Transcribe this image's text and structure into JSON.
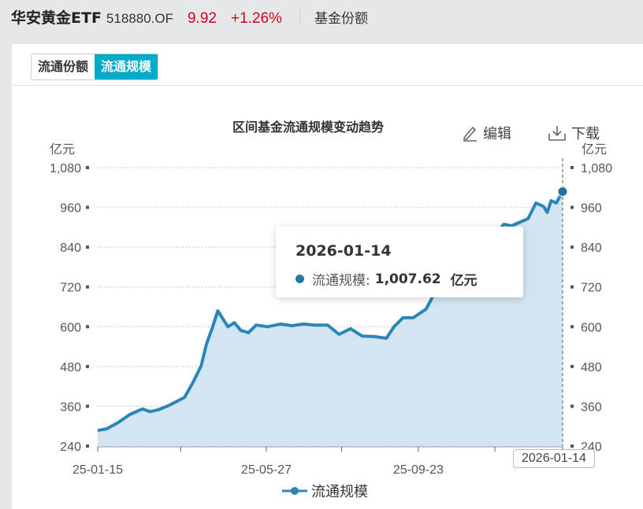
{
  "header": {
    "name": "华安黄金ETF",
    "code": "518880.OF",
    "price": "9.92",
    "change": "+1.26%",
    "link": "基金份额"
  },
  "tabs": [
    {
      "label": "流通份额",
      "active": false
    },
    {
      "label": "流通规模",
      "active": true
    }
  ],
  "toolbar": {
    "edit": "编辑",
    "download": "下载"
  },
  "tooltip": {
    "date": "2026-01-14",
    "series": "流通规模:",
    "value": "1,007.62",
    "unit": "亿元"
  },
  "colors": {
    "line": "#2a86b8",
    "area": "#d3e5f0",
    "accent": "#00aac8",
    "up": "#d0021b"
  },
  "chart_data": {
    "type": "area",
    "title": "区间基金流通规模变动趋势",
    "ylabel_left": "亿元",
    "ylabel_right": "亿元",
    "ylim": [
      240,
      1080
    ],
    "yticks": [
      "240",
      "360",
      "480",
      "600",
      "720",
      "840",
      "960",
      "1,080"
    ],
    "ytick_values": [
      240,
      360,
      480,
      600,
      720,
      840,
      960,
      1080
    ],
    "xtick_labels": [
      "25-01-15",
      "25-05-27",
      "25-09-23",
      "2026-01-14"
    ],
    "xtick_dates": [
      "2025-01-15",
      "2025-03-21",
      "2025-05-27",
      "2025-07-25",
      "2025-09-23",
      "2025-11-22",
      "2026-01-14"
    ],
    "xtick_printed": [
      "25-01-15",
      "",
      "25-05-27",
      "",
      "25-09-23",
      "",
      ""
    ],
    "grid": true,
    "legend_position": "bottom",
    "series": [
      {
        "name": "流通规模",
        "x": [
          "2025-01-15",
          "2025-01-22",
          "2025-01-31",
          "2025-02-09",
          "2025-02-19",
          "2025-02-25",
          "2025-03-03",
          "2025-03-12",
          "2025-03-18",
          "2025-03-24",
          "2025-03-31",
          "2025-04-06",
          "2025-04-10",
          "2025-04-15",
          "2025-04-19",
          "2025-04-23",
          "2025-04-27",
          "2025-05-02",
          "2025-05-07",
          "2025-05-13",
          "2025-05-19",
          "2025-05-28",
          "2025-06-07",
          "2025-06-16",
          "2025-06-25",
          "2025-07-04",
          "2025-07-14",
          "2025-07-23",
          "2025-08-01",
          "2025-08-10",
          "2025-08-20",
          "2025-08-29",
          "2025-09-04",
          "2025-09-11",
          "2025-09-19",
          "2025-09-29",
          "2025-10-05",
          "2025-10-11",
          "2025-10-17",
          "2025-10-23",
          "2025-10-29",
          "2025-11-05",
          "2025-11-11",
          "2025-11-17",
          "2025-11-23",
          "2025-11-29",
          "2025-12-05",
          "2025-12-12",
          "2025-12-18",
          "2025-12-24",
          "2025-12-30",
          "2026-01-02",
          "2026-01-05",
          "2026-01-09",
          "2026-01-14"
        ],
        "values": [
          287,
          292,
          311,
          335,
          352,
          344,
          349,
          363,
          375,
          387,
          435,
          482,
          546,
          600,
          648,
          624,
          600,
          612,
          589,
          582,
          605,
          600,
          608,
          603,
          608,
          605,
          605,
          577,
          594,
          572,
          570,
          565,
          600,
          627,
          627,
          653,
          696,
          779,
          862,
          826,
          814,
          814,
          838,
          862,
          881,
          909,
          904,
          916,
          926,
          973,
          963,
          945,
          980,
          973,
          1007.62
        ]
      }
    ]
  }
}
